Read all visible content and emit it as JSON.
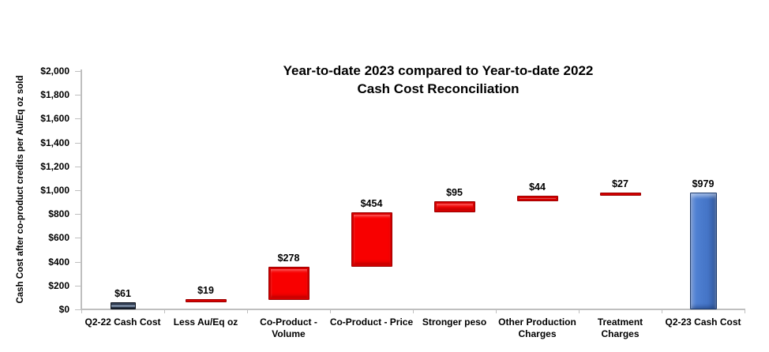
{
  "chart_data": {
    "type": "bar",
    "subtype": "waterfall",
    "title_line1": "Year-to-date 2023 compared to Year-to-date 2022",
    "title_line2": "Cash Cost Reconciliation",
    "ylabel": "Cash Cost after co-product credits per Au/Eq oz sold",
    "ylim": [
      0,
      2000
    ],
    "ytick_step": 200,
    "ytick_labels": [
      "$2,000",
      "$1,800",
      "$1,600",
      "$1,400",
      "$1,200",
      "$1,000",
      "$800",
      "$600",
      "$400",
      "$200",
      "$0"
    ],
    "grid": false,
    "legend_position": "none",
    "bars": [
      {
        "category_lines": [
          "Q2-22 Cash Cost"
        ],
        "value": 61,
        "label": "$61",
        "kind": "start-total",
        "color_key": "dark"
      },
      {
        "category_lines": [
          "Less Au/Eq oz"
        ],
        "value": 19,
        "label": "$19",
        "kind": "delta",
        "color_key": "red"
      },
      {
        "category_lines": [
          "Co-Product -",
          "Volume"
        ],
        "value": 278,
        "label": "$278",
        "kind": "delta",
        "color_key": "red"
      },
      {
        "category_lines": [
          "Co-Product - Price"
        ],
        "value": 454,
        "label": "$454",
        "kind": "delta",
        "color_key": "red"
      },
      {
        "category_lines": [
          "Stronger peso"
        ],
        "value": 95,
        "label": "$95",
        "kind": "delta",
        "color_key": "red"
      },
      {
        "category_lines": [
          "Other Production",
          "Charges"
        ],
        "value": 44,
        "label": "$44",
        "kind": "delta",
        "color_key": "red"
      },
      {
        "category_lines": [
          "Treatment",
          "Charges"
        ],
        "value": 27,
        "label": "$27",
        "kind": "delta",
        "color_key": "red"
      },
      {
        "category_lines": [
          "Q2-23 Cash Cost"
        ],
        "value": 979,
        "label": "$979",
        "kind": "end-total",
        "color_key": "blue"
      }
    ],
    "cumulative_ends": [
      61,
      80,
      358,
      812,
      907,
      951,
      978,
      979
    ],
    "colors": {
      "background": "#ffffff",
      "text": "#000000",
      "axis_line": "#bfbfbf",
      "dark_fill": "#2f3b50",
      "red_fill": "#f80000",
      "red_border": "#9b0000",
      "blue_fill": "#4474c6",
      "blue_border": "#1e3c6e"
    }
  }
}
